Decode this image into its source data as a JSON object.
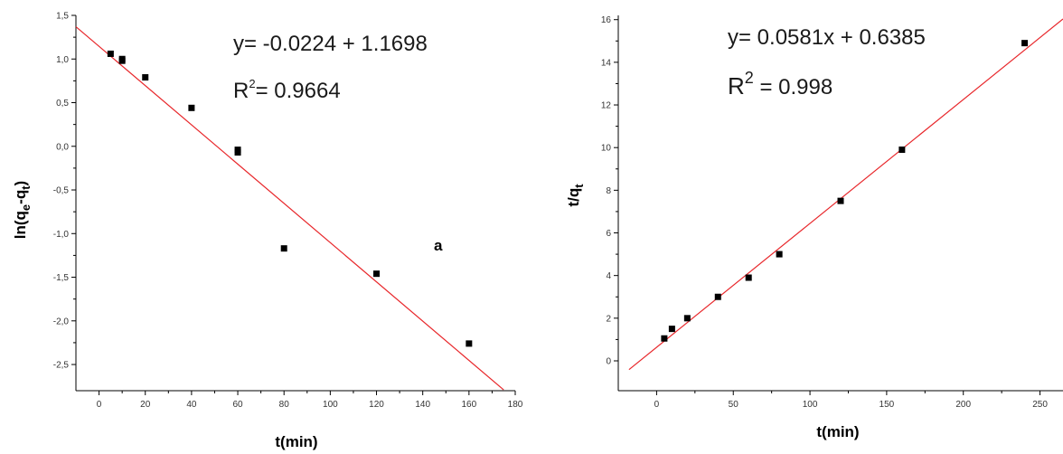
{
  "chart_data": [
    {
      "type": "scatter",
      "title": "",
      "xlabel": "t(min)",
      "ylabel": "ln(qe-qt)",
      "ylabel_parts": {
        "pre": "ln(q",
        "sub1": "e",
        "mid": "-q",
        "sub2": "t",
        "post": ")"
      },
      "xlim": [
        -10,
        180
      ],
      "ylim": [
        -2.8,
        1.5
      ],
      "xticks": [
        0,
        20,
        40,
        60,
        80,
        100,
        120,
        140,
        160,
        180
      ],
      "yticks": [
        1.5,
        1.0,
        0.5,
        0.0,
        -0.5,
        -1.0,
        -1.5,
        -2.0,
        -2.5
      ],
      "ytick_labels": [
        "1,5",
        "1,0",
        "0,5",
        "0,0",
        "-0,5",
        "-1,0",
        "-1,5",
        "-2,0",
        "-2,5"
      ],
      "points": [
        {
          "x": 5,
          "y": 1.06
        },
        {
          "x": 10,
          "y": 0.98
        },
        {
          "x": 10,
          "y": 1.0
        },
        {
          "x": 20,
          "y": 0.79
        },
        {
          "x": 40,
          "y": 0.44
        },
        {
          "x": 60,
          "y": -0.04
        },
        {
          "x": 60,
          "y": -0.07
        },
        {
          "x": 80,
          "y": -1.17
        },
        {
          "x": 120,
          "y": -1.46
        },
        {
          "x": 160,
          "y": -2.26
        }
      ],
      "fit_line": {
        "x": [
          -10,
          175
        ],
        "y": [
          1.37,
          -2.79
        ]
      },
      "equation": "y= -0.0224 + 1.1698",
      "r2": {
        "prefix": "R",
        "sup": "2",
        "value": "= 0.9664"
      },
      "panel_label": "a",
      "colors": {
        "points": "#000000",
        "fit_line": "#e8262a",
        "axis": "#000000"
      }
    },
    {
      "type": "scatter",
      "title": "",
      "xlabel": "t(min)",
      "ylabel": "t/qt",
      "ylabel_parts": {
        "pre": "t/q",
        "sub": "t"
      },
      "xlim": [
        -25,
        265
      ],
      "ylim": [
        -1.4,
        16.2
      ],
      "xticks": [
        0,
        50,
        100,
        150,
        200,
        250
      ],
      "yticks": [
        0,
        2,
        4,
        6,
        8,
        10,
        12,
        14,
        16
      ],
      "points": [
        {
          "x": 5,
          "y": 1.05
        },
        {
          "x": 10,
          "y": 1.5
        },
        {
          "x": 20,
          "y": 2.0
        },
        {
          "x": 40,
          "y": 3.0
        },
        {
          "x": 60,
          "y": 3.9
        },
        {
          "x": 80,
          "y": 5.0
        },
        {
          "x": 120,
          "y": 7.5
        },
        {
          "x": 160,
          "y": 9.9
        },
        {
          "x": 240,
          "y": 14.9
        }
      ],
      "fit_line": {
        "x": [
          -18,
          265
        ],
        "y": [
          -0.41,
          16.03
        ]
      },
      "equation": "y= 0.0581x + 0.6385",
      "r2": {
        "prefix": "R",
        "sup": "2",
        "value": " = 0.998"
      },
      "colors": {
        "points": "#000000",
        "fit_line": "#e8262a",
        "axis": "#000000"
      }
    }
  ]
}
